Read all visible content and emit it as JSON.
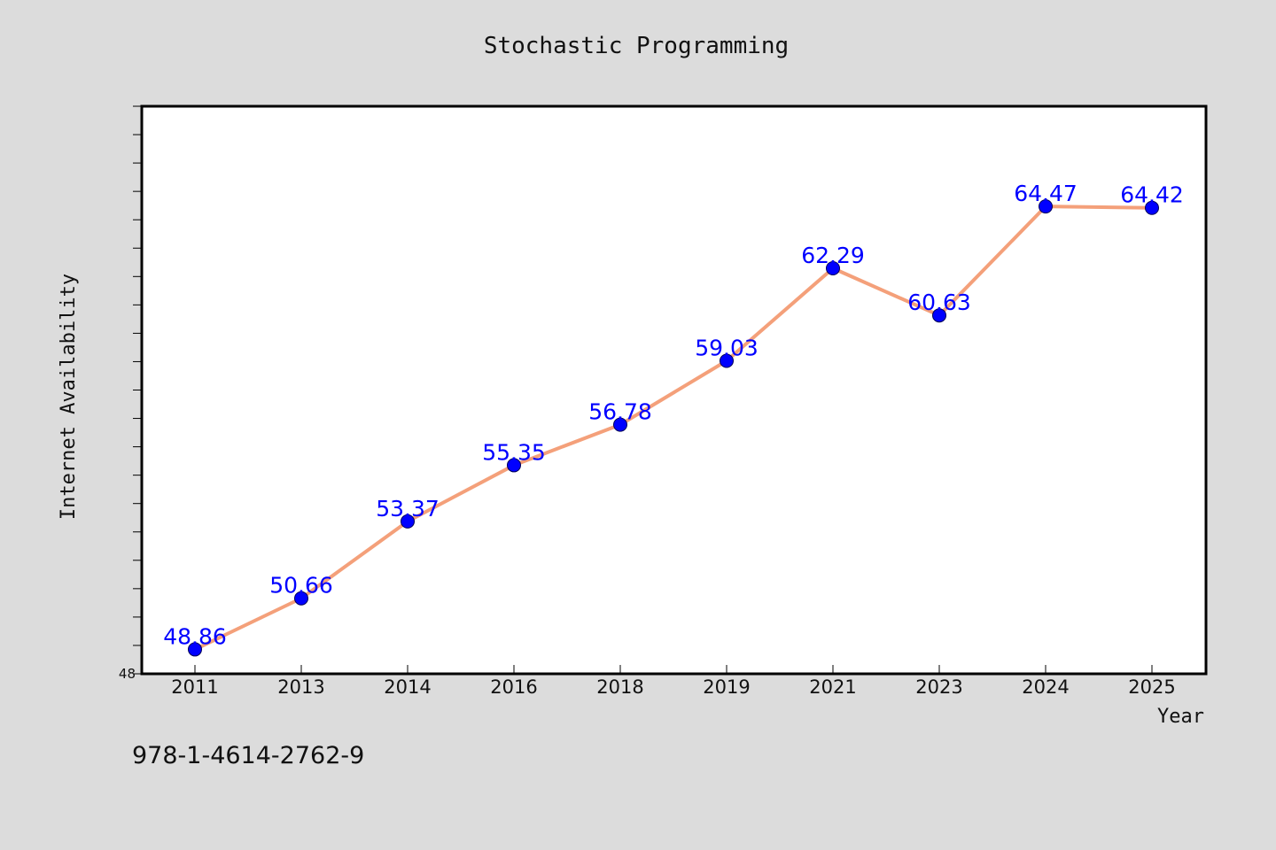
{
  "footer_text": "978-1-4614-2762-9",
  "colors": {
    "background": "#dcdcdc",
    "plot_background": "#ffffff",
    "line": "#f4a07a",
    "marker": "#0000ff",
    "data_label": "#0000ff"
  },
  "chart_data": {
    "type": "line",
    "title": "Stochastic Programming",
    "xlabel": "Year",
    "ylabel": "Internet Availability",
    "categories": [
      "2011",
      "2013",
      "2014",
      "2016",
      "2018",
      "2019",
      "2021",
      "2023",
      "2024",
      "2025"
    ],
    "series": [
      {
        "values": [
          48.86,
          50.66,
          53.37,
          55.35,
          56.78,
          59.03,
          62.29,
          60.63,
          64.47,
          64.42
        ],
        "labels": [
          "48.86",
          "50.66",
          "53.37",
          "55.35",
          "56.78",
          "59.03",
          "62.29",
          "60.63",
          "64.47",
          "64.42"
        ]
      }
    ],
    "ylim": [
      48,
      68
    ],
    "y_tick_labels": [
      "48"
    ],
    "y_minor_tick_step": 1,
    "grid": false,
    "legend": "none"
  }
}
